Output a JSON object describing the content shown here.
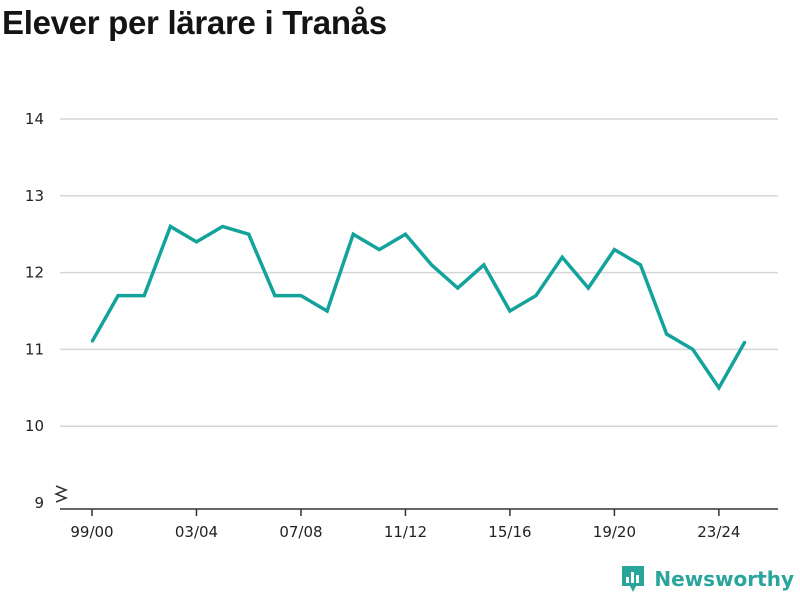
{
  "title": "Elever per lärare i Tranås",
  "brand": {
    "name": "Newsworthy",
    "icon": "newsworthy-logo-icon",
    "color": "#2aa59b"
  },
  "chart_data": {
    "type": "line",
    "title": "Elever per lärare i Tranås",
    "xlabel": "",
    "ylabel": "",
    "x_tick_labels": [
      "99/00",
      "03/04",
      "07/08",
      "11/12",
      "15/16",
      "19/20",
      "23/24"
    ],
    "y_tick_labels": [
      "9",
      "10",
      "11",
      "12",
      "13",
      "14"
    ],
    "ylim": [
      9,
      14
    ],
    "y_axis_break": true,
    "grid": "horizontal",
    "line_color": "#13a39a",
    "series": [
      {
        "x": [
          "99/00",
          "00/01",
          "01/02",
          "02/03",
          "03/04",
          "04/05",
          "05/06",
          "06/07",
          "07/08",
          "08/09",
          "09/10",
          "10/11",
          "11/12",
          "12/13",
          "13/14",
          "14/15",
          "15/16",
          "16/17",
          "17/18",
          "18/19",
          "19/20",
          "20/21",
          "21/22",
          "22/23",
          "23/24",
          "24/25"
        ],
        "values": [
          11.1,
          11.7,
          11.7,
          12.6,
          12.4,
          12.6,
          12.5,
          11.7,
          11.7,
          11.5,
          12.5,
          12.3,
          12.5,
          12.1,
          11.8,
          12.1,
          11.5,
          11.7,
          12.2,
          11.8,
          12.3,
          12.1,
          11.2,
          11.0,
          10.5,
          11.1
        ]
      }
    ]
  }
}
